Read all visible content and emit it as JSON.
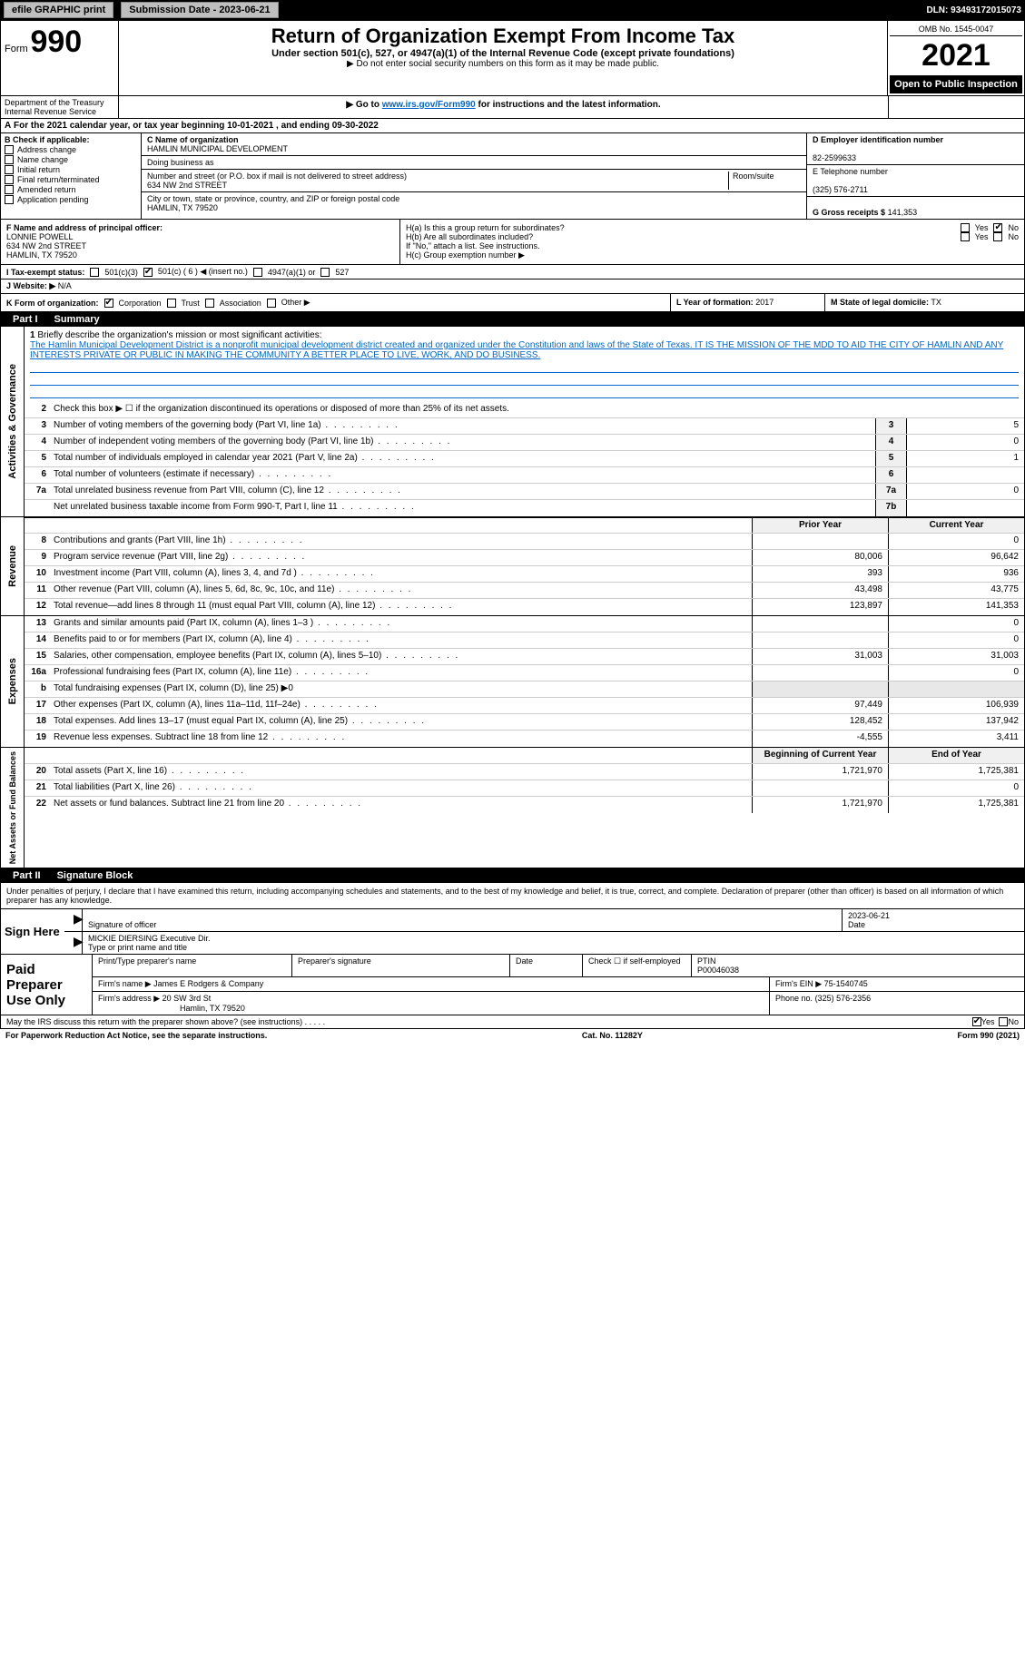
{
  "topbar": {
    "efile_label": "efile GRAPHIC print",
    "submission_label": "Submission Date - 2023-06-21",
    "dln_label": "DLN: 93493172015073"
  },
  "header": {
    "form_word": "Form",
    "form_number": "990",
    "main_title": "Return of Organization Exempt From Income Tax",
    "sub_title": "Under section 501(c), 527, or 4947(a)(1) of the Internal Revenue Code (except private foundations)",
    "no_ssn": "▶ Do not enter social security numbers on this form as it may be made public.",
    "goto_prefix": "▶ Go to ",
    "goto_link": "www.irs.gov/Form990",
    "goto_suffix": " for instructions and the latest information.",
    "omb": "OMB No. 1545-0047",
    "year": "2021",
    "open_public": "Open to Public Inspection",
    "dept": "Department of the Treasury",
    "irs": "Internal Revenue Service"
  },
  "section_a": {
    "prefix": "A",
    "text": "For the 2021 calendar year, or tax year beginning 10-01-2021    , and ending 09-30-2022"
  },
  "col_b": {
    "hdr": "B Check if applicable:",
    "items": [
      "Address change",
      "Name change",
      "Initial return",
      "Final return/terminated",
      "Amended return",
      "Application pending"
    ]
  },
  "col_c": {
    "name_lbl": "C Name of organization",
    "name_val": "HAMLIN MUNICIPAL DEVELOPMENT",
    "dba_lbl": "Doing business as",
    "street_lbl": "Number and street (or P.O. box if mail is not delivered to street address)",
    "room_lbl": "Room/suite",
    "street_val": "634 NW 2nd STREET",
    "city_lbl": "City or town, state or province, country, and ZIP or foreign postal code",
    "city_val": "HAMLIN, TX  79520"
  },
  "col_d": {
    "ein_lbl": "D Employer identification number",
    "ein_val": "82-2599633",
    "phone_lbl": "E Telephone number",
    "phone_val": "(325) 576-2711",
    "gross_lbl": "G Gross receipts $",
    "gross_val": "141,353"
  },
  "block_f": {
    "lbl": "F  Name and address of principal officer:",
    "name": "LONNIE POWELL",
    "street": "634 NW 2nd STREET",
    "city": "HAMLIN, TX  79520"
  },
  "block_h": {
    "a_lbl": "H(a)  Is this a group return for subordinates?",
    "b_lbl": "H(b)  Are all subordinates included?",
    "ifno": "If \"No,\" attach a list. See instructions.",
    "c_lbl": "H(c)  Group exemption number ▶",
    "yes": "Yes",
    "no": "No"
  },
  "row_i": {
    "lbl": "I  Tax-exempt status:",
    "c3": "501(c)(3)",
    "c": "501(c) ( 6 ) ◀ (insert no.)",
    "a1": "4947(a)(1) or",
    "s527": "527"
  },
  "row_j": {
    "lbl": "J  Website: ▶",
    "val": "N/A"
  },
  "row_k": {
    "lbl": "K Form of organization:",
    "corp": "Corporation",
    "trust": "Trust",
    "assoc": "Association",
    "other": "Other ▶",
    "l_lbl": "L Year of formation:",
    "l_val": "2017",
    "m_lbl": "M State of legal domicile:",
    "m_val": "TX"
  },
  "part1": {
    "hdr_num": "Part I",
    "hdr_title": "Summary",
    "line1_lbl": "Briefly describe the organization's mission or most significant activities:",
    "mission": "The Hamlin Municipal Development District is a nonprofit municipal development district created and organized under the Constitution and laws of the State of Texas. IT IS THE MISSION OF THE MDD TO AID THE CITY OF HAMLIN AND ANY INTERESTS PRIVATE OR PUBLIC IN MAKING THE COMMUNITY A BETTER PLACE TO LIVE, WORK, AND DO BUSINESS.",
    "line2": "Check this box ▶ ☐  if the organization discontinued its operations or disposed of more than 25% of its net assets.",
    "governance_label": "Activities & Governance",
    "revenue_label": "Revenue",
    "expenses_label": "Expenses",
    "netassets_label": "Net Assets or Fund Balances",
    "prior_hdr": "Prior Year",
    "current_hdr": "Current Year",
    "boy_hdr": "Beginning of Current Year",
    "eoy_hdr": "End of Year",
    "rows_gov": [
      {
        "n": "3",
        "t": "Number of voting members of the governing body (Part VI, line 1a)",
        "box": "3",
        "v": "5"
      },
      {
        "n": "4",
        "t": "Number of independent voting members of the governing body (Part VI, line 1b)",
        "box": "4",
        "v": "0"
      },
      {
        "n": "5",
        "t": "Total number of individuals employed in calendar year 2021 (Part V, line 2a)",
        "box": "5",
        "v": "1"
      },
      {
        "n": "6",
        "t": "Total number of volunteers (estimate if necessary)",
        "box": "6",
        "v": ""
      },
      {
        "n": "7a",
        "t": "Total unrelated business revenue from Part VIII, column (C), line 12",
        "box": "7a",
        "v": "0"
      },
      {
        "n": "",
        "t": "Net unrelated business taxable income from Form 990-T, Part I, line 11",
        "box": "7b",
        "v": ""
      }
    ],
    "rows_rev": [
      {
        "n": "8",
        "t": "Contributions and grants (Part VIII, line 1h)",
        "p": "",
        "c": "0"
      },
      {
        "n": "9",
        "t": "Program service revenue (Part VIII, line 2g)",
        "p": "80,006",
        "c": "96,642"
      },
      {
        "n": "10",
        "t": "Investment income (Part VIII, column (A), lines 3, 4, and 7d )",
        "p": "393",
        "c": "936"
      },
      {
        "n": "11",
        "t": "Other revenue (Part VIII, column (A), lines 5, 6d, 8c, 9c, 10c, and 11e)",
        "p": "43,498",
        "c": "43,775"
      },
      {
        "n": "12",
        "t": "Total revenue—add lines 8 through 11 (must equal Part VIII, column (A), line 12)",
        "p": "123,897",
        "c": "141,353"
      }
    ],
    "rows_exp": [
      {
        "n": "13",
        "t": "Grants and similar amounts paid (Part IX, column (A), lines 1–3 )",
        "p": "",
        "c": "0"
      },
      {
        "n": "14",
        "t": "Benefits paid to or for members (Part IX, column (A), line 4)",
        "p": "",
        "c": "0"
      },
      {
        "n": "15",
        "t": "Salaries, other compensation, employee benefits (Part IX, column (A), lines 5–10)",
        "p": "31,003",
        "c": "31,003"
      },
      {
        "n": "16a",
        "t": "Professional fundraising fees (Part IX, column (A), line 11e)",
        "p": "",
        "c": "0"
      },
      {
        "n": "b",
        "t": "Total fundraising expenses (Part IX, column (D), line 25) ▶0",
        "p": null,
        "c": null
      },
      {
        "n": "17",
        "t": "Other expenses (Part IX, column (A), lines 11a–11d, 11f–24e)",
        "p": "97,449",
        "c": "106,939"
      },
      {
        "n": "18",
        "t": "Total expenses. Add lines 13–17 (must equal Part IX, column (A), line 25)",
        "p": "128,452",
        "c": "137,942"
      },
      {
        "n": "19",
        "t": "Revenue less expenses. Subtract line 18 from line 12",
        "p": "-4,555",
        "c": "3,411"
      }
    ],
    "rows_net": [
      {
        "n": "20",
        "t": "Total assets (Part X, line 16)",
        "p": "1,721,970",
        "c": "1,725,381"
      },
      {
        "n": "21",
        "t": "Total liabilities (Part X, line 26)",
        "p": "",
        "c": "0"
      },
      {
        "n": "22",
        "t": "Net assets or fund balances. Subtract line 21 from line 20",
        "p": "1,721,970",
        "c": "1,725,381"
      }
    ]
  },
  "part2": {
    "hdr_num": "Part II",
    "hdr_title": "Signature Block",
    "intro": "Under penalties of perjury, I declare that I have examined this return, including accompanying schedules and statements, and to the best of my knowledge and belief, it is true, correct, and complete. Declaration of preparer (other than officer) is based on all information of which preparer has any knowledge.",
    "sign_here": "Sign Here",
    "sig_officer_lbl": "Signature of officer",
    "date_lbl": "Date",
    "date_val": "2023-06-21",
    "name_title_lbl": "Type or print name and title",
    "name_title_val": "MICKIE DIERSING  Executive Dir.",
    "paid_prep": "Paid Preparer Use Only",
    "prep_name_lbl": "Print/Type preparer's name",
    "prep_sig_lbl": "Preparer's signature",
    "prep_date_lbl": "Date",
    "check_self_lbl": "Check ☐ if self-employed",
    "ptin_lbl": "PTIN",
    "ptin_val": "P00046038",
    "firm_name_lbl": "Firm's name    ▶",
    "firm_name_val": "James E Rodgers & Company",
    "firm_ein_lbl": "Firm's EIN ▶",
    "firm_ein_val": "75-1540745",
    "firm_addr_lbl": "Firm's address ▶",
    "firm_addr_val1": "20 SW 3rd St",
    "firm_addr_val2": "Hamlin, TX  79520",
    "firm_phone_lbl": "Phone no.",
    "firm_phone_val": "(325) 576-2356",
    "may_irs": "May the IRS discuss this return with the preparer shown above? (see instructions)",
    "yes": "Yes",
    "no": "No"
  },
  "footer": {
    "pra": "For Paperwork Reduction Act Notice, see the separate instructions.",
    "cat": "Cat. No. 11282Y",
    "form": "Form 990 (2021)"
  },
  "colors": {
    "black": "#000000",
    "white": "#ffffff",
    "link": "#0066cc",
    "gray_btn": "#bfbfbf",
    "lt_gray": "#f0f0f0",
    "border_gray": "#cccccc"
  }
}
